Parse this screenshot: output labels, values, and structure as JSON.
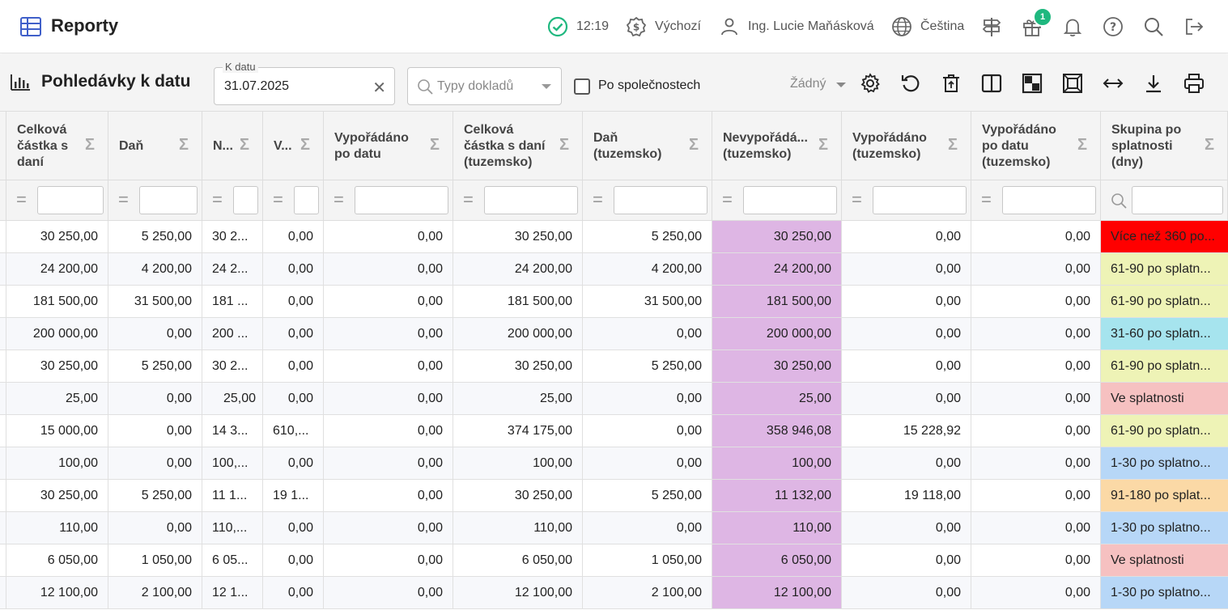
{
  "app": {
    "title": "Reporty"
  },
  "header": {
    "time": "12:19",
    "profile": "Výchozí",
    "user": "Ing. Lucie Maňásková",
    "language": "Čeština",
    "gift_count": "1"
  },
  "toolbar": {
    "report_title": "Pohledávky k datu",
    "date_label": "K datu",
    "date_value": "31.07.2025",
    "date_clear": "✕",
    "types_placeholder": "Typy dokladů",
    "by_company_label": "Po společnostech",
    "view_value": "Žádný"
  },
  "grid": {
    "sigma": "Σ",
    "eq": "=",
    "columns": [
      "",
      "Celková částka s daní",
      "Daň",
      "N...",
      "V...",
      "Vypořádáno po datu",
      "Celková částka s daní (tuzemsko)",
      "Daň (tuzemsko)",
      "Nevypořádá... (tuzemsko)",
      "Vypořádáno (tuzemsko)",
      "Vypořádáno po datu (tuzemsko)",
      "Skupina po splatnosti (dny)"
    ],
    "rows": [
      [
        "",
        "30 250,00",
        "5 250,00",
        "30 2...",
        "0,00",
        "0,00",
        "30 250,00",
        "5 250,00",
        "30 250,00",
        "0,00",
        "0,00",
        "Více než 360 po..."
      ],
      [
        "",
        "24 200,00",
        "4 200,00",
        "24 2...",
        "0,00",
        "0,00",
        "24 200,00",
        "4 200,00",
        "24 200,00",
        "0,00",
        "0,00",
        "61-90 po splatn..."
      ],
      [
        "",
        "181 500,00",
        "31 500,00",
        "181 ...",
        "0,00",
        "0,00",
        "181 500,00",
        "31 500,00",
        "181 500,00",
        "0,00",
        "0,00",
        "61-90 po splatn..."
      ],
      [
        "",
        "200 000,00",
        "0,00",
        "200 ...",
        "0,00",
        "0,00",
        "200 000,00",
        "0,00",
        "200 000,00",
        "0,00",
        "0,00",
        "31-60 po splatn..."
      ],
      [
        "",
        "30 250,00",
        "5 250,00",
        "30 2...",
        "0,00",
        "0,00",
        "30 250,00",
        "5 250,00",
        "30 250,00",
        "0,00",
        "0,00",
        "61-90 po splatn..."
      ],
      [
        "",
        "25,00",
        "0,00",
        "25,00",
        "0,00",
        "0,00",
        "25,00",
        "0,00",
        "25,00",
        "0,00",
        "0,00",
        "Ve splatnosti"
      ],
      [
        "",
        "15 000,00",
        "0,00",
        "14 3...",
        "610,...",
        "0,00",
        "374 175,00",
        "0,00",
        "358 946,08",
        "15 228,92",
        "0,00",
        "61-90 po splatn..."
      ],
      [
        "",
        "100,00",
        "0,00",
        "100,...",
        "0,00",
        "0,00",
        "100,00",
        "0,00",
        "100,00",
        "0,00",
        "0,00",
        "1-30 po splatno..."
      ],
      [
        "",
        "30 250,00",
        "5 250,00",
        "11 1...",
        "19 1...",
        "0,00",
        "30 250,00",
        "5 250,00",
        "11 132,00",
        "19 118,00",
        "0,00",
        "91-180 po splat..."
      ],
      [
        "",
        "110,00",
        "0,00",
        "110,...",
        "0,00",
        "0,00",
        "110,00",
        "0,00",
        "110,00",
        "0,00",
        "0,00",
        "1-30 po splatno..."
      ],
      [
        "",
        "6 050,00",
        "1 050,00",
        "6 05...",
        "0,00",
        "0,00",
        "6 050,00",
        "1 050,00",
        "6 050,00",
        "0,00",
        "0,00",
        "Ve splatnosti"
      ],
      [
        "",
        "12 100,00",
        "2 100,00",
        "12 1...",
        "0,00",
        "0,00",
        "12 100,00",
        "2 100,00",
        "12 100,00",
        "0,00",
        "0,00",
        "1-30 po splatno..."
      ]
    ],
    "group_colors": {
      "Více než 360 po...": "#ff0000",
      "61-90 po splatn...": "#eef3b6",
      "31-60 po splatn...": "#a6e4ee",
      "Ve splatnosti": "#f6c1c1",
      "1-30 po splatno...": "#b7d7f7",
      "91-180 po splat...": "#fbd9a6"
    },
    "highlight_color": "#deb6e4"
  }
}
